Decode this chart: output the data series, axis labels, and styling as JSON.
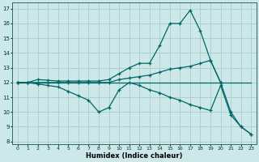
{
  "xlabel": "Humidex (Indice chaleur)",
  "bg_color": "#cce8e8",
  "grid_color": "#aacccc",
  "line_color": "#006666",
  "xlim": [
    -0.5,
    23.5
  ],
  "ylim": [
    7.8,
    17.4
  ],
  "xticks": [
    0,
    1,
    2,
    3,
    4,
    5,
    6,
    7,
    8,
    9,
    10,
    11,
    12,
    13,
    14,
    15,
    16,
    17,
    18,
    19,
    20,
    21,
    22,
    23
  ],
  "yticks": [
    8,
    9,
    10,
    11,
    12,
    13,
    14,
    15,
    16,
    17
  ],
  "line1_x": [
    0,
    1,
    2,
    3,
    4,
    5,
    6,
    7,
    8,
    9,
    10,
    11,
    12,
    13,
    14,
    15,
    16,
    17,
    18,
    19,
    20
  ],
  "line1_y": [
    12.0,
    12.0,
    12.2,
    12.15,
    12.1,
    12.1,
    12.1,
    12.1,
    12.1,
    12.2,
    12.6,
    13.0,
    13.3,
    13.3,
    14.5,
    16.0,
    16.0,
    16.9,
    15.5,
    13.5,
    12.0
  ],
  "line2_x": [
    0,
    1,
    2,
    3,
    4,
    5,
    6,
    7,
    8,
    9,
    10,
    11,
    12,
    13,
    14,
    15,
    16,
    17,
    18,
    19,
    20,
    21,
    22,
    23
  ],
  "line2_y": [
    12.0,
    12.0,
    12.0,
    12.0,
    12.0,
    12.0,
    12.0,
    12.0,
    12.0,
    12.0,
    12.2,
    12.3,
    12.4,
    12.5,
    12.7,
    12.9,
    13.0,
    13.1,
    13.3,
    13.5,
    12.0,
    10.0,
    9.0,
    8.5
  ],
  "line3_x": [
    0,
    1,
    2,
    3,
    4,
    5,
    6,
    7,
    8,
    9,
    10,
    11,
    12,
    13,
    14,
    15,
    16,
    17,
    18,
    19,
    20,
    21,
    22,
    23
  ],
  "line3_y": [
    12.0,
    12.0,
    11.9,
    11.8,
    11.7,
    11.4,
    11.1,
    10.8,
    10.0,
    10.3,
    11.5,
    12.0,
    11.8,
    11.5,
    11.3,
    11.0,
    10.8,
    10.5,
    10.3,
    10.1,
    11.8,
    9.8,
    9.0,
    8.5
  ],
  "line4_x": [
    0,
    23
  ],
  "line4_y": [
    12.0,
    12.0
  ]
}
